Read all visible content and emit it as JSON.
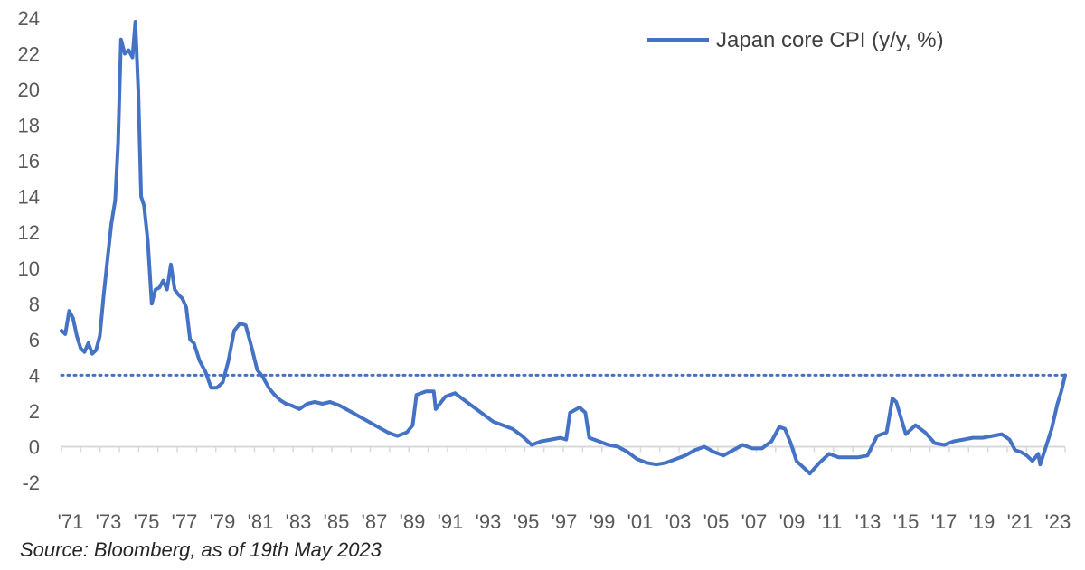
{
  "chart_data": {
    "type": "line",
    "title": "",
    "xlabel": "",
    "ylabel": "",
    "ylim": [
      -2,
      24
    ],
    "y_ticks": [
      -2,
      0,
      2,
      4,
      6,
      8,
      10,
      12,
      14,
      16,
      18,
      20,
      22,
      24
    ],
    "x_ticks": [
      "'71",
      "'73",
      "'75",
      "'77",
      "'79",
      "'81",
      "'83",
      "'85",
      "'87",
      "'89",
      "'91",
      "'93",
      "'95",
      "'97",
      "'99",
      "'01",
      "'03",
      "'05",
      "'07",
      "'09",
      "'11",
      "'13",
      "'15",
      "'17",
      "'19",
      "'21",
      "'23"
    ],
    "x_range": [
      1971.0,
      2023.3
    ],
    "grid": false,
    "legend_position": "top-right",
    "colors": {
      "series": "#4472c4",
      "reference_line": "#4472c4",
      "axis": "#d9d9d9"
    },
    "series": [
      {
        "name": "Japan core CPI (y/y, %)",
        "x": [
          1971.0,
          1971.2,
          1971.4,
          1971.6,
          1971.8,
          1972.0,
          1972.2,
          1972.4,
          1972.6,
          1972.8,
          1973.0,
          1973.2,
          1973.4,
          1973.6,
          1973.8,
          1973.95,
          1974.1,
          1974.3,
          1974.5,
          1974.7,
          1974.85,
          1975.0,
          1975.15,
          1975.3,
          1975.5,
          1975.7,
          1975.9,
          1976.1,
          1976.3,
          1976.5,
          1976.7,
          1976.9,
          1977.1,
          1977.3,
          1977.5,
          1977.7,
          1977.9,
          1978.2,
          1978.5,
          1978.8,
          1979.1,
          1979.4,
          1979.7,
          1980.0,
          1980.3,
          1980.6,
          1980.9,
          1981.2,
          1981.5,
          1981.8,
          1982.1,
          1982.4,
          1982.7,
          1983.0,
          1983.4,
          1983.8,
          1984.2,
          1984.6,
          1985.0,
          1985.5,
          1986.0,
          1986.5,
          1987.0,
          1987.5,
          1988.0,
          1988.5,
          1989.0,
          1989.3,
          1989.5,
          1990.0,
          1990.4,
          1990.5,
          1991.0,
          1991.5,
          1992.0,
          1992.5,
          1993.0,
          1993.5,
          1994.0,
          1994.5,
          1995.0,
          1995.5,
          1996.0,
          1996.5,
          1997.0,
          1997.3,
          1997.5,
          1998.0,
          1998.3,
          1998.5,
          1999.0,
          1999.5,
          2000.0,
          2000.5,
          2001.0,
          2001.5,
          2002.0,
          2002.5,
          2003.0,
          2003.5,
          2004.0,
          2004.5,
          2005.0,
          2005.5,
          2006.0,
          2006.5,
          2007.0,
          2007.5,
          2008.0,
          2008.4,
          2008.7,
          2009.0,
          2009.3,
          2009.6,
          2010.0,
          2010.5,
          2011.0,
          2011.5,
          2012.0,
          2012.5,
          2013.0,
          2013.5,
          2014.0,
          2014.3,
          2014.5,
          2015.0,
          2015.3,
          2015.5,
          2016.0,
          2016.5,
          2017.0,
          2017.5,
          2018.0,
          2018.5,
          2019.0,
          2019.5,
          2020.0,
          2020.4,
          2020.7,
          2021.0,
          2021.3,
          2021.6,
          2021.9,
          2022.0,
          2022.3,
          2022.6,
          2022.9,
          2023.1,
          2023.3
        ],
        "values": [
          6.5,
          6.3,
          7.6,
          7.2,
          6.2,
          5.5,
          5.3,
          5.8,
          5.2,
          5.4,
          6.2,
          8.5,
          10.5,
          12.5,
          13.8,
          17.0,
          22.8,
          22.0,
          22.2,
          21.8,
          23.8,
          20.0,
          14.0,
          13.5,
          11.5,
          8.0,
          8.8,
          8.9,
          9.3,
          8.8,
          10.2,
          8.8,
          8.5,
          8.3,
          7.8,
          6.0,
          5.8,
          4.8,
          4.2,
          3.3,
          3.3,
          3.6,
          4.8,
          6.5,
          6.9,
          6.8,
          5.6,
          4.3,
          3.9,
          3.3,
          2.9,
          2.6,
          2.4,
          2.3,
          2.1,
          2.4,
          2.5,
          2.4,
          2.5,
          2.3,
          2.0,
          1.7,
          1.4,
          1.1,
          0.8,
          0.6,
          0.8,
          1.2,
          2.9,
          3.1,
          3.1,
          2.1,
          2.8,
          3.0,
          2.6,
          2.2,
          1.8,
          1.4,
          1.2,
          1.0,
          0.6,
          0.1,
          0.3,
          0.4,
          0.5,
          0.4,
          1.9,
          2.2,
          1.9,
          0.5,
          0.3,
          0.1,
          0.0,
          -0.3,
          -0.7,
          -0.9,
          -1.0,
          -0.9,
          -0.7,
          -0.5,
          -0.2,
          0.0,
          -0.3,
          -0.5,
          -0.2,
          0.1,
          -0.1,
          -0.1,
          0.3,
          1.1,
          1.0,
          0.2,
          -0.8,
          -1.1,
          -1.5,
          -0.9,
          -0.4,
          -0.6,
          -0.6,
          -0.6,
          -0.5,
          0.6,
          0.8,
          2.7,
          2.5,
          0.7,
          1.0,
          1.2,
          0.8,
          0.2,
          0.1,
          0.3,
          0.4,
          0.5,
          0.5,
          0.6,
          0.7,
          0.4,
          -0.2,
          -0.3,
          -0.5,
          -0.8,
          -0.4,
          -1.0,
          0.0,
          1.0,
          2.4,
          3.1,
          4.0
        ]
      }
    ],
    "reference_lines": [
      {
        "y": 4.0,
        "style": "dotted"
      }
    ]
  },
  "source_note": "Source: Bloomberg, as of 19th May 2023"
}
